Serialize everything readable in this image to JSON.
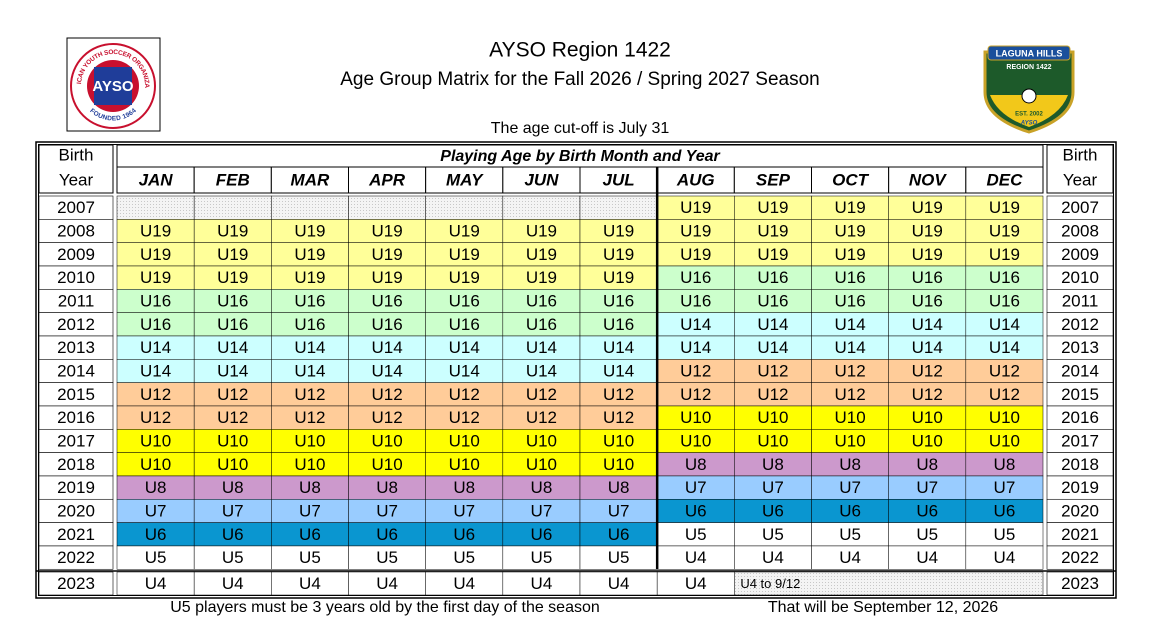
{
  "header": {
    "title": "AYSO Region 1422",
    "subtitle": "Age Group Matrix for the Fall 2026 / Spring 2027 Season",
    "cutoff": "The age cut-off is July 31"
  },
  "left_logo": {
    "letters": "AYSO",
    "ring_top": "AMERICAN YOUTH SOCCER ORGANIZATION",
    "ring_bottom": "FOUNDED 1964"
  },
  "right_logo": {
    "name": "LAGUNA HILLS",
    "region": "REGION 1422",
    "est": "EST. 2002",
    "org": "AYSO"
  },
  "table": {
    "corner_top": "Birth",
    "corner_bottom": "Year",
    "span_header": "Playing Age by Birth Month and Year",
    "months": [
      "JAN",
      "FEB",
      "MAR",
      "APR",
      "MAY",
      "JUN",
      "JUL",
      "AUG",
      "SEP",
      "OCT",
      "NOV",
      "DEC"
    ],
    "rows": [
      {
        "year": "2007",
        "cells": [
          null,
          null,
          null,
          null,
          null,
          null,
          null,
          "U19",
          "U19",
          "U19",
          "U19",
          "U19"
        ]
      },
      {
        "year": "2008",
        "cells": [
          "U19",
          "U19",
          "U19",
          "U19",
          "U19",
          "U19",
          "U19",
          "U19",
          "U19",
          "U19",
          "U19",
          "U19"
        ]
      },
      {
        "year": "2009",
        "cells": [
          "U19",
          "U19",
          "U19",
          "U19",
          "U19",
          "U19",
          "U19",
          "U19",
          "U19",
          "U19",
          "U19",
          "U19"
        ]
      },
      {
        "year": "2010",
        "cells": [
          "U19",
          "U19",
          "U19",
          "U19",
          "U19",
          "U19",
          "U19",
          "U16",
          "U16",
          "U16",
          "U16",
          "U16"
        ]
      },
      {
        "year": "2011",
        "cells": [
          "U16",
          "U16",
          "U16",
          "U16",
          "U16",
          "U16",
          "U16",
          "U16",
          "U16",
          "U16",
          "U16",
          "U16"
        ]
      },
      {
        "year": "2012",
        "cells": [
          "U16",
          "U16",
          "U16",
          "U16",
          "U16",
          "U16",
          "U16",
          "U14",
          "U14",
          "U14",
          "U14",
          "U14"
        ]
      },
      {
        "year": "2013",
        "cells": [
          "U14",
          "U14",
          "U14",
          "U14",
          "U14",
          "U14",
          "U14",
          "U14",
          "U14",
          "U14",
          "U14",
          "U14"
        ]
      },
      {
        "year": "2014",
        "cells": [
          "U14",
          "U14",
          "U14",
          "U14",
          "U14",
          "U14",
          "U14",
          "U12",
          "U12",
          "U12",
          "U12",
          "U12"
        ]
      },
      {
        "year": "2015",
        "cells": [
          "U12",
          "U12",
          "U12",
          "U12",
          "U12",
          "U12",
          "U12",
          "U12",
          "U12",
          "U12",
          "U12",
          "U12"
        ]
      },
      {
        "year": "2016",
        "cells": [
          "U12",
          "U12",
          "U12",
          "U12",
          "U12",
          "U12",
          "U12",
          "U10",
          "U10",
          "U10",
          "U10",
          "U10"
        ]
      },
      {
        "year": "2017",
        "cells": [
          "U10",
          "U10",
          "U10",
          "U10",
          "U10",
          "U10",
          "U10",
          "U10",
          "U10",
          "U10",
          "U10",
          "U10"
        ]
      },
      {
        "year": "2018",
        "cells": [
          "U10",
          "U10",
          "U10",
          "U10",
          "U10",
          "U10",
          "U10",
          "U8",
          "U8",
          "U8",
          "U8",
          "U8"
        ]
      },
      {
        "year": "2019",
        "cells": [
          "U8",
          "U8",
          "U8",
          "U8",
          "U8",
          "U8",
          "U8",
          "U7",
          "U7",
          "U7",
          "U7",
          "U7"
        ]
      },
      {
        "year": "2020",
        "cells": [
          "U7",
          "U7",
          "U7",
          "U7",
          "U7",
          "U7",
          "U7",
          "U6",
          "U6",
          "U6",
          "U6",
          "U6"
        ]
      },
      {
        "year": "2021",
        "cells": [
          "U6",
          "U6",
          "U6",
          "U6",
          "U6",
          "U6",
          "U6",
          "U5",
          "U5",
          "U5",
          "U5",
          "U5"
        ]
      },
      {
        "year": "2022",
        "cells": [
          "U5",
          "U5",
          "U5",
          "U5",
          "U5",
          "U5",
          "U5",
          "U4",
          "U4",
          "U4",
          "U4",
          "U4"
        ]
      },
      {
        "year": "2023",
        "cells": [
          "U4",
          "U4",
          "U4",
          "U4",
          "U4",
          "U4",
          "U4",
          "U4",
          "U4 to 9/12"
        ]
      }
    ]
  },
  "age_colors": {
    "U19": "#ffff99",
    "U16": "#ccffcc",
    "U14": "#ccffff",
    "U12": "#ffcc99",
    "U10": "#ffff00",
    "U8": "#cc99cc",
    "U7": "#99ccff",
    "U6": "#0a96d0"
  },
  "footer": {
    "left": "U5 players must be 3 years old by the first day of the season",
    "right": "That will be September 12, 2026"
  }
}
